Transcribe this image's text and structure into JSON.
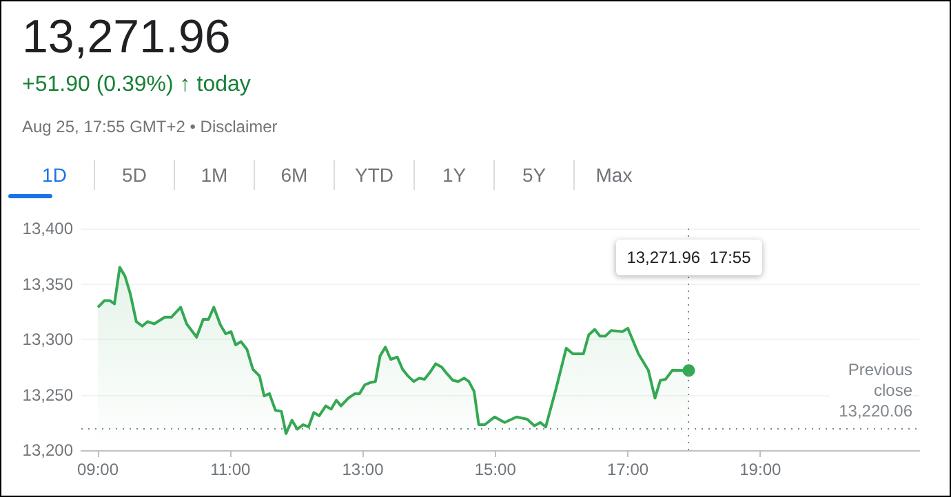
{
  "chart_data": {
    "type": "area",
    "title": "13,271.96",
    "subtitle": "+51.90 (0.39%) ↑ today",
    "annotations": [
      "Aug 25, 17:55 GMT+2 • Disclaimer",
      "1D",
      "5D",
      "1M",
      "6M",
      "YTD",
      "1Y",
      "5Y",
      "Max",
      "13,271.96  17:55"
    ],
    "x": [
      9.0,
      9.1,
      9.18,
      9.25,
      9.33,
      9.41,
      9.49,
      9.58,
      9.67,
      9.75,
      9.85,
      10.01,
      10.11,
      10.25,
      10.34,
      10.49,
      10.59,
      10.67,
      10.75,
      10.85,
      10.93,
      11.01,
      11.08,
      11.16,
      11.25,
      11.34,
      11.44,
      11.51,
      11.59,
      11.68,
      11.77,
      11.84,
      11.93,
      12.01,
      12.1,
      12.18,
      12.26,
      12.34,
      12.44,
      12.52,
      12.6,
      12.67,
      12.78,
      12.88,
      12.95,
      13.03,
      13.11,
      13.19,
      13.26,
      13.34,
      13.42,
      13.52,
      13.6,
      13.68,
      13.77,
      13.85,
      13.93,
      14.01,
      14.1,
      14.19,
      14.27,
      14.36,
      14.44,
      14.53,
      14.6,
      14.68,
      14.75,
      14.84,
      14.99,
      15.14,
      15.32,
      15.48,
      15.59,
      15.68,
      15.76,
      15.91,
      16.07,
      16.17,
      16.33,
      16.41,
      16.5,
      16.58,
      16.66,
      16.75,
      16.92,
      17.0,
      17.16,
      17.31,
      17.41,
      17.49,
      17.57,
      17.67,
      17.92
    ],
    "series": [
      {
        "color": "#34a853",
        "values": [
          13329,
          13335,
          13335,
          13332,
          13365,
          13357,
          13341,
          13316,
          13312,
          13316,
          13314,
          13320,
          13320,
          13329,
          13314,
          13302,
          13318,
          13318,
          13329,
          13313,
          13305,
          13307,
          13295,
          13298,
          13291,
          13273,
          13267,
          13249,
          13251,
          13236,
          13235,
          13215,
          13227,
          13219,
          13223,
          13221,
          13234,
          13231,
          13240,
          13237,
          13245,
          13240,
          13247,
          13251,
          13251,
          13259,
          13261,
          13262,
          13285,
          13293,
          13282,
          13284,
          13273,
          13267,
          13262,
          13265,
          13264,
          13270,
          13278,
          13275,
          13269,
          13263,
          13262,
          13265,
          13262,
          13253,
          13223,
          13223,
          13230,
          13225,
          13230,
          13228,
          13222,
          13225,
          13221,
          13254,
          13292,
          13287,
          13287,
          13304,
          13309,
          13303,
          13303,
          13308,
          13307,
          13310,
          13287,
          13272,
          13247,
          13263,
          13264,
          13272,
          13271.96
        ]
      }
    ],
    "xlim": [
      8.75,
      21.4
    ],
    "xticks": [
      {
        "value": 9,
        "label": "09:00"
      },
      {
        "value": 11,
        "label": "11:00"
      },
      {
        "value": 13,
        "label": "13:00"
      },
      {
        "value": 15,
        "label": "15:00"
      },
      {
        "value": 17,
        "label": "17:00"
      },
      {
        "value": 19,
        "label": "19:00"
      }
    ],
    "ylim": [
      13200,
      13400
    ],
    "yticks": [
      {
        "value": 13200,
        "label": "13,200"
      },
      {
        "value": 13250,
        "label": "13,250"
      },
      {
        "value": 13300,
        "label": "13,300"
      },
      {
        "value": 13350,
        "label": "13,350"
      },
      {
        "value": 13400,
        "label": "13,400"
      }
    ],
    "grid": "y",
    "ref_lines": [
      {
        "axis": "y",
        "value": 13220.06,
        "label": "Previous close 13,220.06",
        "color": "#80868b",
        "line_style": "dotted"
      },
      {
        "axis": "x",
        "value": 17.92,
        "label": null,
        "color": "#80868b",
        "line_style": "dotted"
      }
    ]
  }
}
